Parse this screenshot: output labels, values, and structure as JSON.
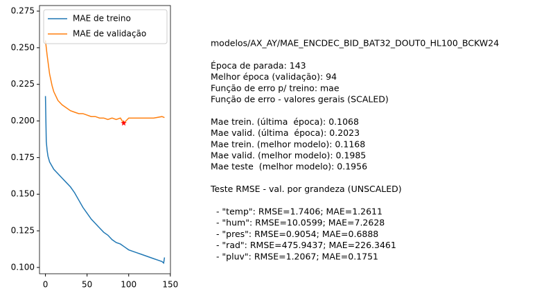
{
  "chart_data": {
    "type": "line",
    "series": [
      {
        "name": "MAE de treino",
        "color": "#1f77b4",
        "x": [
          0,
          1,
          2,
          3,
          5,
          10,
          15,
          20,
          25,
          30,
          35,
          40,
          45,
          50,
          55,
          60,
          65,
          70,
          75,
          80,
          85,
          90,
          95,
          100,
          105,
          110,
          115,
          120,
          125,
          130,
          135,
          140,
          142,
          143
        ],
        "values": [
          0.217,
          0.186,
          0.18,
          0.176,
          0.172,
          0.167,
          0.164,
          0.161,
          0.158,
          0.155,
          0.151,
          0.146,
          0.141,
          0.137,
          0.133,
          0.13,
          0.127,
          0.124,
          0.122,
          0.119,
          0.117,
          0.116,
          0.114,
          0.112,
          0.111,
          0.11,
          0.109,
          0.108,
          0.107,
          0.106,
          0.105,
          0.104,
          0.103,
          0.1068
        ]
      },
      {
        "name": "MAE de validação",
        "color": "#ff7f0e",
        "x": [
          0,
          2,
          5,
          8,
          10,
          15,
          20,
          25,
          30,
          35,
          40,
          45,
          50,
          55,
          60,
          65,
          70,
          75,
          80,
          85,
          90,
          94,
          100,
          110,
          120,
          130,
          140,
          143
        ],
        "values": [
          0.255,
          0.245,
          0.232,
          0.224,
          0.22,
          0.214,
          0.211,
          0.209,
          0.207,
          0.206,
          0.205,
          0.205,
          0.204,
          0.203,
          0.203,
          0.202,
          0.202,
          0.201,
          0.202,
          0.201,
          0.202,
          0.1985,
          0.202,
          0.202,
          0.202,
          0.202,
          0.203,
          0.2023
        ]
      }
    ],
    "best_point": {
      "x": 94,
      "y": 0.1985,
      "color": "#ff0000"
    },
    "xlim": [
      -7.15,
      150.15
    ],
    "xticks": [
      0,
      50,
      100,
      150
    ],
    "ylim": [
      0.0957,
      0.2788
    ],
    "yticks": [
      {
        "value": 0.1,
        "label": "0.100"
      },
      {
        "value": 0.125,
        "label": "0.125"
      },
      {
        "value": 0.15,
        "label": "0.150"
      },
      {
        "value": 0.175,
        "label": "0.175"
      },
      {
        "value": 0.2,
        "label": "0.200"
      },
      {
        "value": 0.225,
        "label": "0.225"
      },
      {
        "value": 0.25,
        "label": "0.250"
      },
      {
        "value": 0.275,
        "label": "0.275"
      }
    ],
    "legend": "upper left",
    "annotation_blocks": [
      [
        "modelos/AX_AY/MAE_ENCDEC_BID_BAT32_DOUT0_HL100_BCKW24"
      ],
      [
        "Época de parada: 143",
        "Melhor época (validação): 94",
        "Função de erro p/ treino: mae",
        "Função de erro - valores gerais (SCALED)"
      ],
      [
        "Mae trein. (última  época): 0.1068",
        "Mae valid. (última  época): 0.2023",
        "Mae trein. (melhor modelo): 0.1168",
        "Mae valid. (melhor modelo): 0.1985",
        "Mae teste  (melhor modelo): 0.1956"
      ],
      [
        "Teste RMSE - val. por grandeza (UNSCALED)"
      ],
      [
        "  - \"temp\": RMSE=1.7406; MAE=1.2611",
        "  - \"hum\": RMSE=10.0599; MAE=7.2628",
        "  - \"pres\": RMSE=0.9054; MAE=0.6888",
        "  - \"rad\": RMSE=475.9437; MAE=226.3461",
        "  - \"pluv\": RMSE=1.2067; MAE=0.1751"
      ]
    ]
  }
}
